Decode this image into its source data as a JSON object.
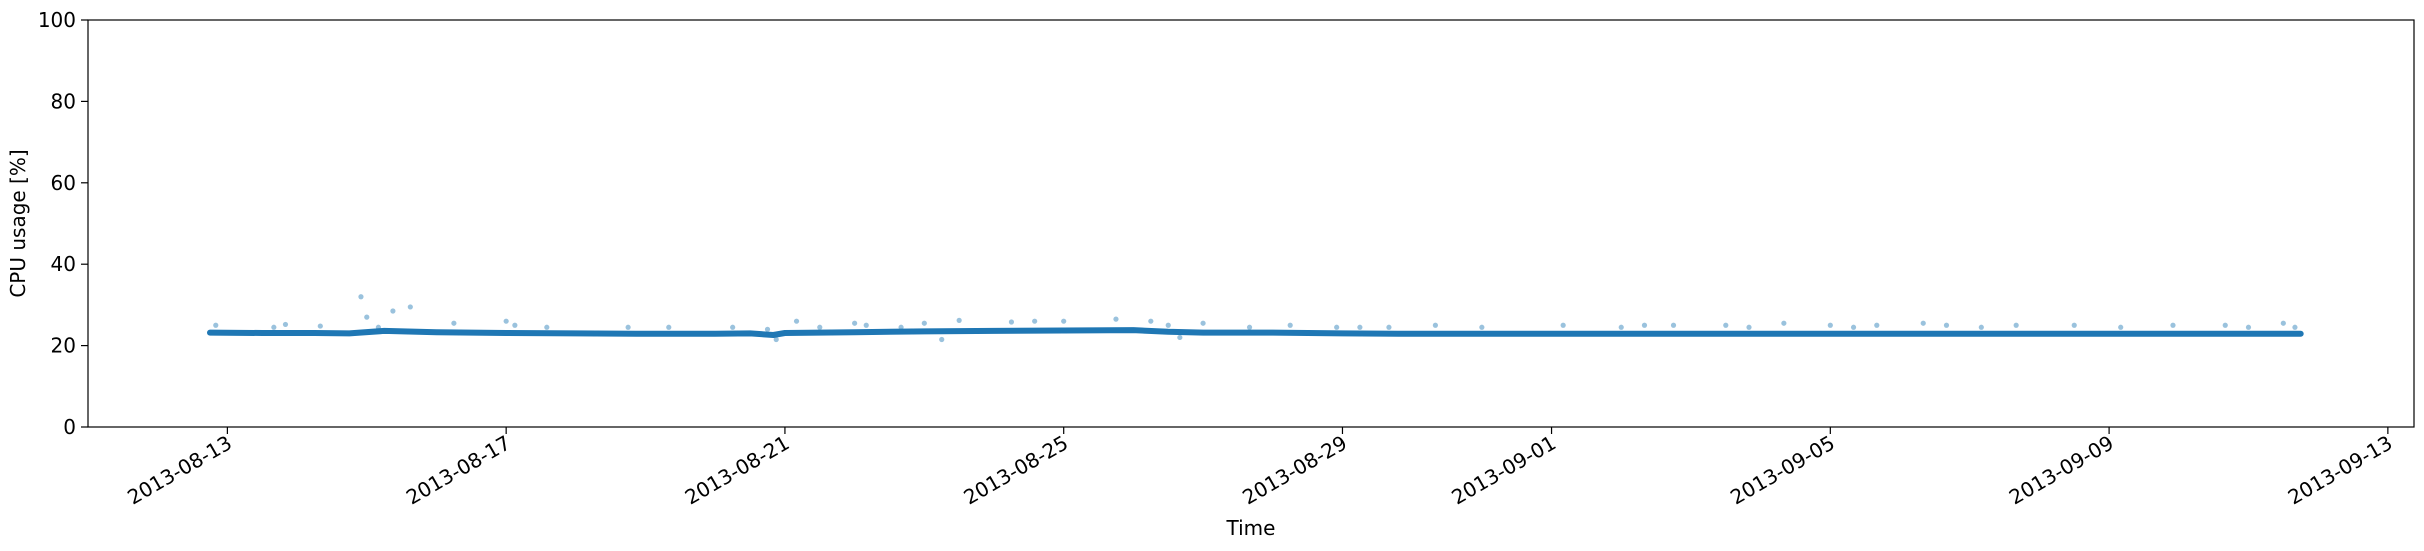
{
  "chart_data": {
    "type": "scatter",
    "title": "",
    "xlabel": "Time",
    "ylabel": "CPU usage [%]",
    "ylim": [
      0,
      100
    ],
    "xlim": [
      "2013-08-11T00:00",
      "2013-09-13T09:00"
    ],
    "x_ticks": [
      "2013-08-13",
      "2013-08-17",
      "2013-08-21",
      "2013-08-25",
      "2013-08-29",
      "2013-09-01",
      "2013-09-05",
      "2013-09-09",
      "2013-09-13"
    ],
    "y_ticks": [
      0,
      20,
      40,
      60,
      80,
      100
    ],
    "grid": false,
    "color": "#1f77b4",
    "series": [
      {
        "x": [
          "2013-08-12T18:00",
          "2013-08-13T12:00",
          "2013-08-14T06:00",
          "2013-08-14T18:00",
          "2013-08-15T06:00",
          "2013-08-16T00:00",
          "2013-08-17T00:00",
          "2013-08-18T00:00",
          "2013-08-19T00:00",
          "2013-08-20T00:00",
          "2013-08-20T12:00",
          "2013-08-20T20:00",
          "2013-08-21T00:00",
          "2013-08-22T00:00",
          "2013-08-23T00:00",
          "2013-08-24T00:00",
          "2013-08-25T00:00",
          "2013-08-26T00:00",
          "2013-08-26T12:00",
          "2013-08-27T00:00",
          "2013-08-28T00:00",
          "2013-08-29T00:00",
          "2013-08-30T00:00",
          "2013-08-31T00:00",
          "2013-09-01T00:00",
          "2013-09-02T00:00",
          "2013-09-03T00:00",
          "2013-09-04T00:00",
          "2013-09-05T00:00",
          "2013-09-06T00:00",
          "2013-09-07T00:00",
          "2013-09-08T00:00",
          "2013-09-09T00:00",
          "2013-09-10T00:00",
          "2013-09-11T00:00",
          "2013-09-11T18:00"
        ],
        "values": [
          23.2,
          23.1,
          23.1,
          23.0,
          23.6,
          23.3,
          23.1,
          23.0,
          22.9,
          22.9,
          23.0,
          22.6,
          23.1,
          23.3,
          23.5,
          23.6,
          23.7,
          23.8,
          23.4,
          23.2,
          23.2,
          23.0,
          22.9,
          22.9,
          22.9,
          22.9,
          22.9,
          22.9,
          22.9,
          22.9,
          22.9,
          22.9,
          22.9,
          22.9,
          22.9,
          22.9
        ]
      }
    ],
    "outliers": [
      {
        "x": "2013-08-12T20:00",
        "y": 25.0
      },
      {
        "x": "2013-08-13T16:00",
        "y": 24.5
      },
      {
        "x": "2013-08-13T20:00",
        "y": 25.2
      },
      {
        "x": "2013-08-14T08:00",
        "y": 24.8
      },
      {
        "x": "2013-08-14T22:00",
        "y": 32.0
      },
      {
        "x": "2013-08-15T00:00",
        "y": 27.0
      },
      {
        "x": "2013-08-15T09:00",
        "y": 28.5
      },
      {
        "x": "2013-08-15T15:00",
        "y": 29.5
      },
      {
        "x": "2013-08-15T04:00",
        "y": 24.5
      },
      {
        "x": "2013-08-16T06:00",
        "y": 25.5
      },
      {
        "x": "2013-08-17T00:00",
        "y": 26.0
      },
      {
        "x": "2013-08-17T03:00",
        "y": 25.0
      },
      {
        "x": "2013-08-17T14:00",
        "y": 24.5
      },
      {
        "x": "2013-08-18T18:00",
        "y": 24.5
      },
      {
        "x": "2013-08-19T08:00",
        "y": 24.5
      },
      {
        "x": "2013-08-20T06:00",
        "y": 24.5
      },
      {
        "x": "2013-08-20T18:00",
        "y": 24.0
      },
      {
        "x": "2013-08-20T21:00",
        "y": 21.5
      },
      {
        "x": "2013-08-21T04:00",
        "y": 26.0
      },
      {
        "x": "2013-08-21T12:00",
        "y": 24.5
      },
      {
        "x": "2013-08-22T00:00",
        "y": 25.5
      },
      {
        "x": "2013-08-22T04:00",
        "y": 25.0
      },
      {
        "x": "2013-08-22T16:00",
        "y": 24.5
      },
      {
        "x": "2013-08-23T00:00",
        "y": 25.5
      },
      {
        "x": "2013-08-23T06:00",
        "y": 21.5
      },
      {
        "x": "2013-08-23T12:00",
        "y": 26.2
      },
      {
        "x": "2013-08-24T06:00",
        "y": 25.8
      },
      {
        "x": "2013-08-24T14:00",
        "y": 26.0
      },
      {
        "x": "2013-08-25T00:00",
        "y": 26.0
      },
      {
        "x": "2013-08-25T18:00",
        "y": 26.5
      },
      {
        "x": "2013-08-26T06:00",
        "y": 26.0
      },
      {
        "x": "2013-08-26T12:00",
        "y": 25.0
      },
      {
        "x": "2013-08-26T16:00",
        "y": 22.0
      },
      {
        "x": "2013-08-27T00:00",
        "y": 25.5
      },
      {
        "x": "2013-08-27T16:00",
        "y": 24.5
      },
      {
        "x": "2013-08-28T06:00",
        "y": 25.0
      },
      {
        "x": "2013-08-28T22:00",
        "y": 24.5
      },
      {
        "x": "2013-08-29T06:00",
        "y": 24.5
      },
      {
        "x": "2013-08-29T16:00",
        "y": 24.5
      },
      {
        "x": "2013-08-30T08:00",
        "y": 25.0
      },
      {
        "x": "2013-08-31T00:00",
        "y": 24.5
      },
      {
        "x": "2013-09-01T04:00",
        "y": 25.0
      },
      {
        "x": "2013-09-02T00:00",
        "y": 24.5
      },
      {
        "x": "2013-09-02T08:00",
        "y": 25.0
      },
      {
        "x": "2013-09-02T18:00",
        "y": 25.0
      },
      {
        "x": "2013-09-03T12:00",
        "y": 25.0
      },
      {
        "x": "2013-09-03T20:00",
        "y": 24.5
      },
      {
        "x": "2013-09-04T08:00",
        "y": 25.5
      },
      {
        "x": "2013-09-05T00:00",
        "y": 25.0
      },
      {
        "x": "2013-09-05T08:00",
        "y": 24.5
      },
      {
        "x": "2013-09-05T16:00",
        "y": 25.0
      },
      {
        "x": "2013-09-06T08:00",
        "y": 25.5
      },
      {
        "x": "2013-09-06T16:00",
        "y": 25.0
      },
      {
        "x": "2013-09-07T04:00",
        "y": 24.5
      },
      {
        "x": "2013-09-07T16:00",
        "y": 25.0
      },
      {
        "x": "2013-09-08T12:00",
        "y": 25.0
      },
      {
        "x": "2013-09-09T04:00",
        "y": 24.5
      },
      {
        "x": "2013-09-09T22:00",
        "y": 25.0
      },
      {
        "x": "2013-09-10T16:00",
        "y": 25.0
      },
      {
        "x": "2013-09-11T00:00",
        "y": 24.5
      },
      {
        "x": "2013-09-11T12:00",
        "y": 25.5
      },
      {
        "x": "2013-09-11T16:00",
        "y": 24.5
      }
    ]
  }
}
